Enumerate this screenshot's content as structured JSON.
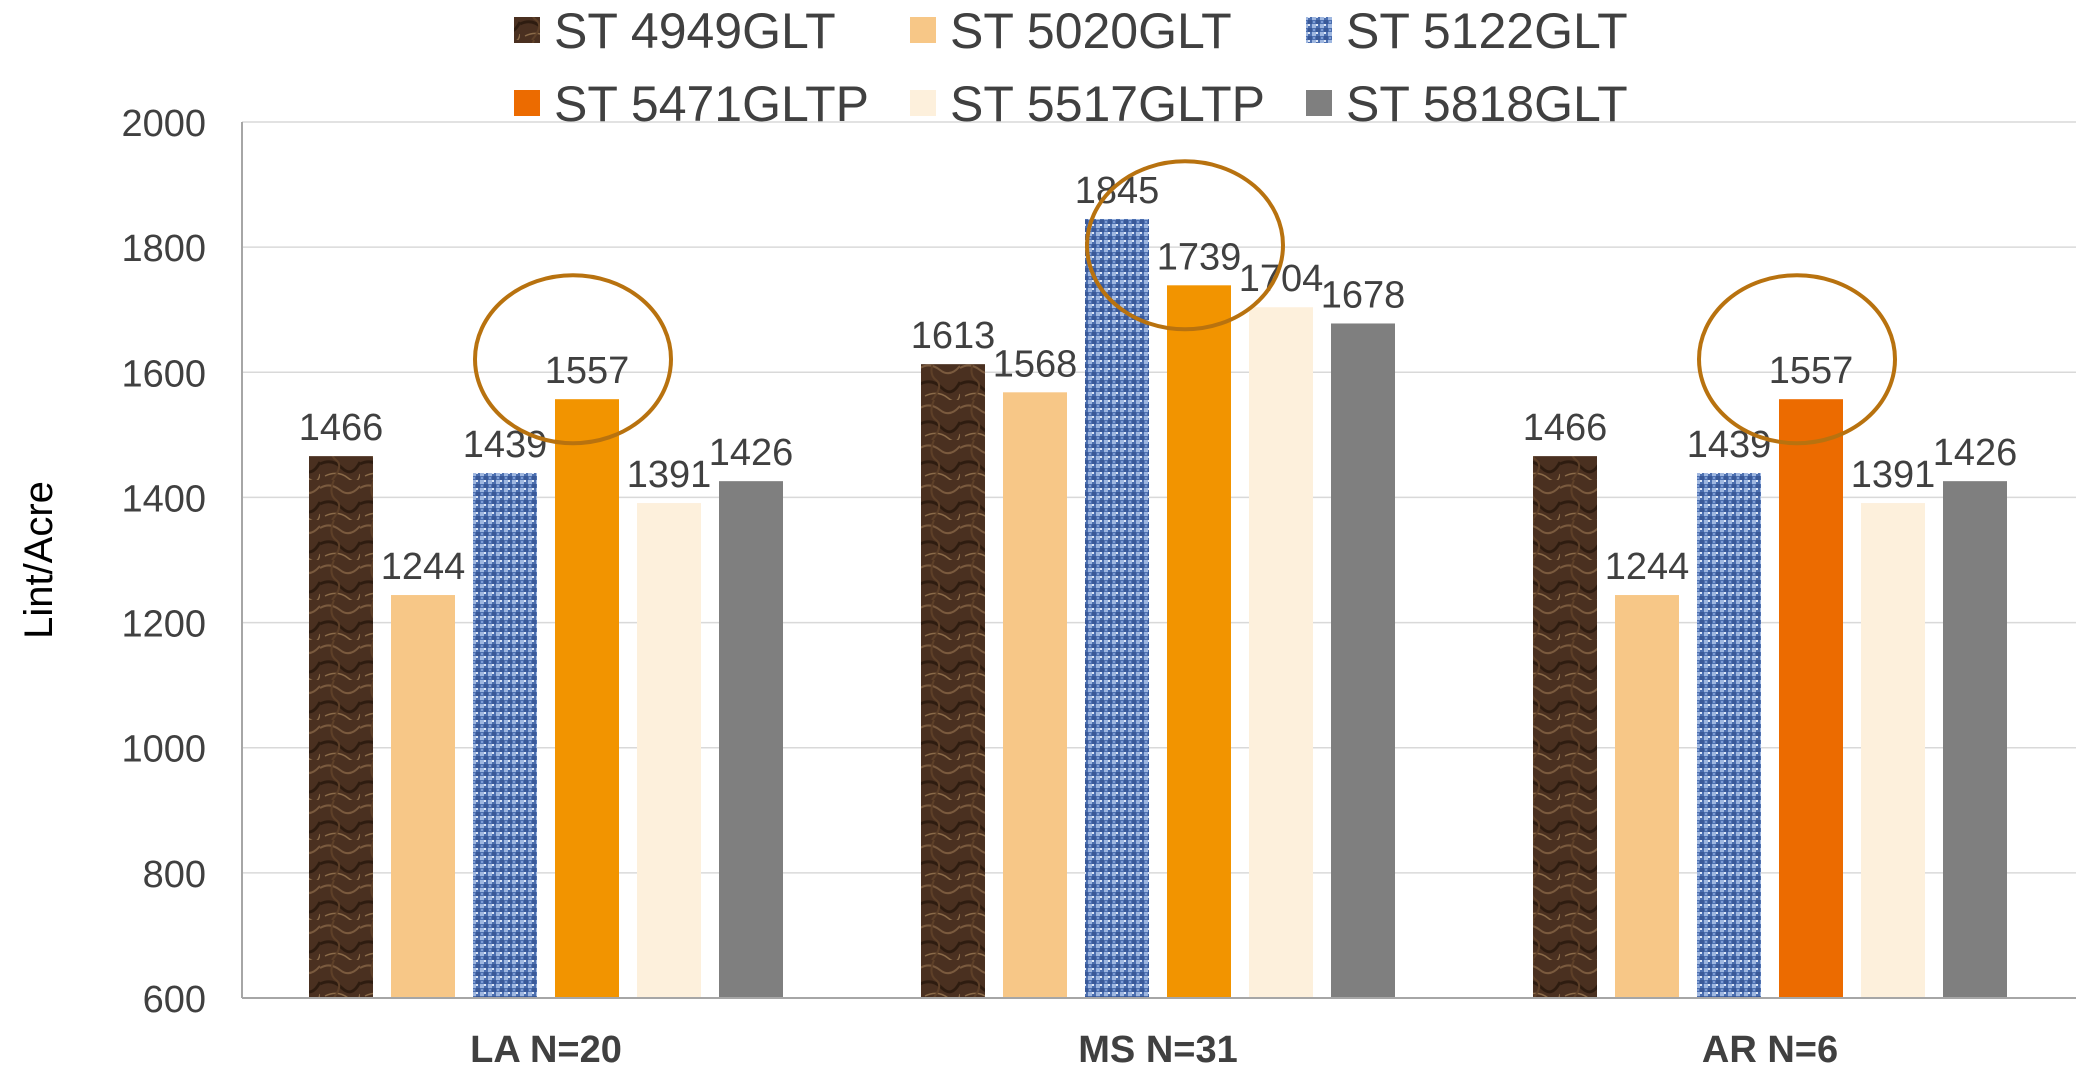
{
  "chart_data": {
    "type": "bar",
    "title": "",
    "xlabel": "",
    "ylabel": "Lint/Acre",
    "ylim": [
      600,
      2000
    ],
    "yticks": [
      "600",
      "800",
      "1000",
      "1200",
      "1400",
      "1600",
      "1800",
      "2000"
    ],
    "grid": true,
    "legend_position": "top",
    "categories": [
      "LA N=20",
      "MS N=31",
      "AR N=6"
    ],
    "series": [
      {
        "name": "ST 4949GLT",
        "values": [
          1466,
          1613,
          1466
        ],
        "labels": [
          "1466",
          "1613",
          "1466"
        ],
        "color": "#4a3020",
        "pattern": "texture-brown"
      },
      {
        "name": "ST 5020GLT",
        "values": [
          1244,
          1568,
          1244
        ],
        "labels": [
          "1244",
          "1568",
          "1244"
        ],
        "color": "#f7c787",
        "pattern": "solid"
      },
      {
        "name": "ST 5122GLT",
        "values": [
          1439,
          1845,
          1439
        ],
        "labels": [
          "1439",
          "1845",
          "1439"
        ],
        "color": "#4a6fb5",
        "pattern": "texture-blue"
      },
      {
        "name": "ST 5471GLTP",
        "values": [
          1557,
          1739,
          1557
        ],
        "labels": [
          "1557",
          "1739",
          "1557"
        ],
        "color": "#f29400",
        "pattern": "solid"
      },
      {
        "name": "ST 5517GLTP",
        "values": [
          1391,
          1704,
          1391
        ],
        "labels": [
          "1391",
          "1704",
          "1391"
        ],
        "color": "#fdf0dc",
        "pattern": "solid"
      },
      {
        "name": "ST 5818GLT",
        "values": [
          1426,
          1678,
          1426
        ],
        "labels": [
          "1426",
          "1678",
          "1426"
        ],
        "color": "#7f7f7f",
        "pattern": "solid"
      }
    ],
    "bar_color_overrides": [
      {
        "series": 3,
        "category": 2,
        "color": "#ec6b00"
      }
    ],
    "legend_swatch_overrides": [
      {
        "series": 3,
        "color": "#ec6b00"
      }
    ],
    "highlight_circles": [
      {
        "series": 3,
        "category": 0,
        "color": "#b8720f"
      },
      {
        "series": 3,
        "category": 1,
        "color": "#b8720f"
      },
      {
        "series": 3,
        "category": 2,
        "color": "#b8720f"
      }
    ],
    "axis_color": "#a6a6a6",
    "grid_color": "#d9d9d9",
    "text_color": "#404040"
  }
}
